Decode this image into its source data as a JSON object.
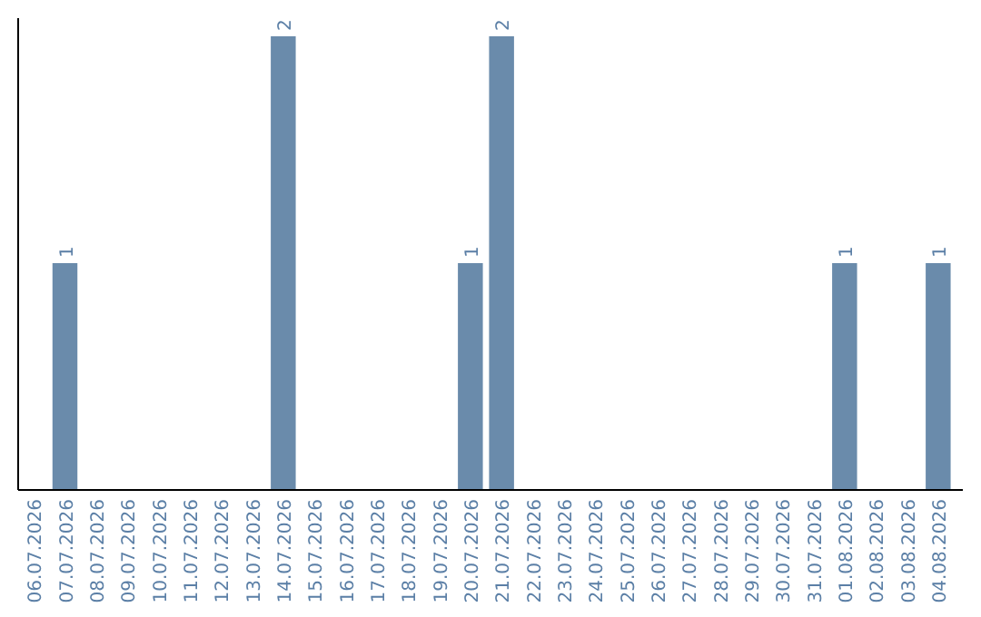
{
  "chart_data": {
    "type": "bar",
    "categories": [
      "06.07.2026",
      "07.07.2026",
      "08.07.2026",
      "09.07.2026",
      "10.07.2026",
      "11.07.2026",
      "12.07.2026",
      "13.07.2026",
      "14.07.2026",
      "15.07.2026",
      "16.07.2026",
      "17.07.2026",
      "18.07.2026",
      "19.07.2026",
      "20.07.2026",
      "21.07.2026",
      "22.07.2026",
      "23.07.2026",
      "24.07.2026",
      "25.07.2026",
      "26.07.2026",
      "27.07.2026",
      "28.07.2026",
      "29.07.2026",
      "30.07.2026",
      "31.07.2026",
      "01.08.2026",
      "02.08.2026",
      "03.08.2026",
      "04.08.2026"
    ],
    "values": [
      0,
      1,
      0,
      0,
      0,
      0,
      0,
      0,
      2,
      0,
      0,
      0,
      0,
      0,
      1,
      2,
      0,
      0,
      0,
      0,
      0,
      0,
      0,
      0,
      0,
      0,
      1,
      0,
      0,
      1
    ],
    "value_labels": [
      null,
      "1",
      null,
      null,
      null,
      null,
      null,
      null,
      "2",
      null,
      null,
      null,
      null,
      null,
      "1",
      "2",
      null,
      null,
      null,
      null,
      null,
      null,
      null,
      null,
      null,
      null,
      "1",
      null,
      null,
      "1"
    ],
    "color": "#6a8bab",
    "ylim": [
      0,
      2
    ],
    "tick_labels": "x"
  }
}
